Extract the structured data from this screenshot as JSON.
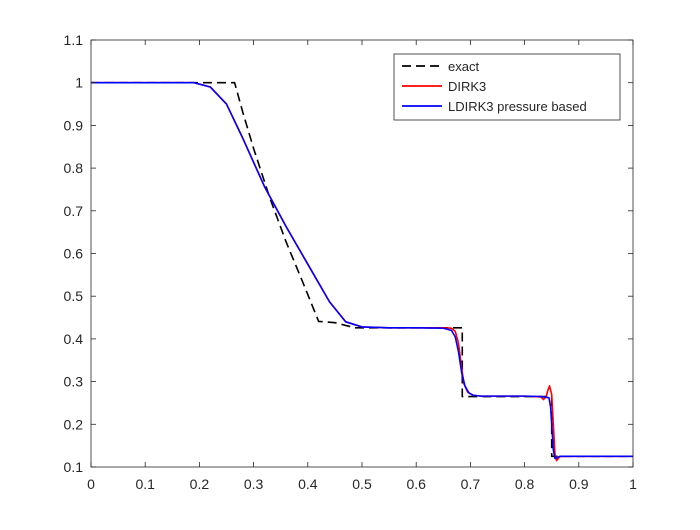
{
  "chart_data": {
    "type": "line",
    "title": "",
    "xlabel": "",
    "ylabel": "",
    "xlim": [
      0,
      1
    ],
    "ylim": [
      0.1,
      1.1
    ],
    "grid": false,
    "legend_position": "top-right",
    "x_ticks": [
      "0",
      "0.1",
      "0.2",
      "0.3",
      "0.4",
      "0.5",
      "0.6",
      "0.7",
      "0.8",
      "0.9",
      "1"
    ],
    "y_ticks": [
      "0.1",
      "0.2",
      "0.3",
      "0.4",
      "0.5",
      "0.6",
      "0.7",
      "0.8",
      "0.9",
      "1",
      "1.1"
    ],
    "series": [
      {
        "name": "exact",
        "color": "#000000",
        "dashed": true,
        "x": [
          0,
          0.265,
          0.28,
          0.3,
          0.33,
          0.36,
          0.39,
          0.42,
          0.45,
          0.487,
          0.685,
          0.685,
          0.85,
          0.85,
          1.0
        ],
        "y": [
          1.0,
          1.0,
          0.931,
          0.846,
          0.73,
          0.627,
          0.535,
          0.441,
          0.438,
          0.426,
          0.426,
          0.265,
          0.265,
          0.125,
          0.125
        ]
      },
      {
        "name": "DIRK3",
        "color": "#ff0000",
        "dashed": false,
        "x": [
          0,
          0.19,
          0.22,
          0.25,
          0.28,
          0.32,
          0.36,
          0.4,
          0.44,
          0.47,
          0.5,
          0.55,
          0.6,
          0.65,
          0.665,
          0.672,
          0.678,
          0.683,
          0.688,
          0.695,
          0.705,
          0.72,
          0.8,
          0.83,
          0.835,
          0.84,
          0.843,
          0.846,
          0.85,
          0.853,
          0.856,
          0.859,
          0.862,
          0.865,
          0.87,
          1.0
        ],
        "y": [
          1.0,
          1.0,
          0.99,
          0.95,
          0.87,
          0.757,
          0.663,
          0.575,
          0.487,
          0.44,
          0.428,
          0.426,
          0.426,
          0.426,
          0.425,
          0.418,
          0.39,
          0.34,
          0.295,
          0.275,
          0.268,
          0.266,
          0.266,
          0.264,
          0.258,
          0.266,
          0.28,
          0.29,
          0.27,
          0.2,
          0.13,
          0.115,
          0.12,
          0.124,
          0.125,
          0.125
        ]
      },
      {
        "name": "LDIRK3 pressure based",
        "color": "#0000ff",
        "dashed": false,
        "x": [
          0,
          0.19,
          0.22,
          0.25,
          0.28,
          0.32,
          0.36,
          0.4,
          0.44,
          0.47,
          0.5,
          0.55,
          0.6,
          0.65,
          0.665,
          0.672,
          0.678,
          0.684,
          0.69,
          0.697,
          0.705,
          0.72,
          0.8,
          0.83,
          0.845,
          0.848,
          0.851,
          0.853,
          0.856,
          0.86,
          0.865,
          1.0
        ],
        "y": [
          1.0,
          1.0,
          0.99,
          0.95,
          0.87,
          0.757,
          0.663,
          0.575,
          0.487,
          0.44,
          0.428,
          0.426,
          0.426,
          0.425,
          0.42,
          0.405,
          0.37,
          0.32,
          0.29,
          0.274,
          0.268,
          0.266,
          0.266,
          0.265,
          0.262,
          0.24,
          0.18,
          0.14,
          0.12,
          0.122,
          0.125,
          0.125
        ]
      }
    ]
  }
}
